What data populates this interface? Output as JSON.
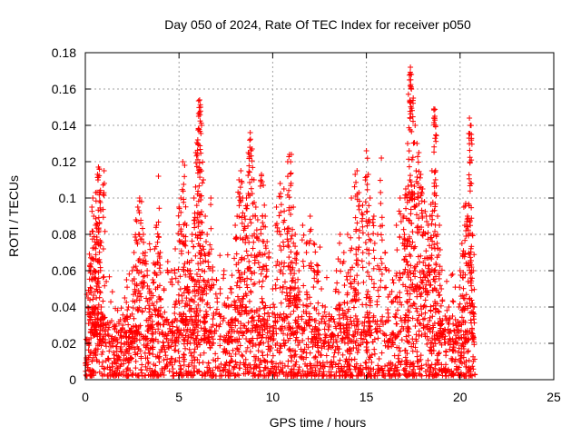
{
  "chart_data": {
    "type": "scatter",
    "title": "Day 050 of 2024, Rate Of TEC Index for receiver p050",
    "xlabel": "GPS time / hours",
    "ylabel": "ROTI / TECUs",
    "xlim": [
      0,
      25
    ],
    "ylim": [
      0,
      0.18
    ],
    "xticks": [
      0,
      5,
      10,
      15,
      20,
      25
    ],
    "yticks": [
      0,
      0.02,
      0.04,
      0.06,
      0.08,
      0.1,
      0.12,
      0.14,
      0.16,
      0.18
    ],
    "xtick_labels": [
      "0",
      "5",
      "10",
      "15",
      "20",
      "25"
    ],
    "ytick_labels": [
      "0",
      "0.02",
      "0.04",
      "0.06",
      "0.08",
      "0.1",
      "0.12",
      "0.14",
      "0.16",
      "0.18"
    ],
    "grid": true,
    "marker": "+",
    "color": "#ff0000",
    "series": [
      {
        "points": [
          [
            0.05,
            0.012
          ],
          [
            0.1,
            0.02
          ],
          [
            0.15,
            0.045
          ],
          [
            0.2,
            0.06
          ],
          [
            0.25,
            0.08
          ],
          [
            0.3,
            0.062
          ],
          [
            0.35,
            0.095
          ],
          [
            0.4,
            0.1
          ],
          [
            0.45,
            0.09
          ],
          [
            0.5,
            0.06
          ],
          [
            0.55,
            0.103
          ],
          [
            0.6,
            0.086
          ],
          [
            0.65,
            0.113
          ],
          [
            0.7,
            0.117
          ],
          [
            0.75,
            0.116
          ],
          [
            0.8,
            0.103
          ],
          [
            0.85,
            0.04
          ],
          [
            0.9,
            0.036
          ],
          [
            0.95,
            0.035
          ],
          [
            1.0,
            0.115
          ],
          [
            1.1,
            0.03
          ],
          [
            1.2,
            0.025
          ],
          [
            1.3,
            0.02
          ],
          [
            1.5,
            0.015
          ],
          [
            1.7,
            0.022
          ],
          [
            1.9,
            0.018
          ],
          [
            2.0,
            0.03
          ],
          [
            2.1,
            0.045
          ],
          [
            2.2,
            0.055
          ],
          [
            2.3,
            0.04
          ],
          [
            2.4,
            0.035
          ],
          [
            2.5,
            0.06
          ],
          [
            2.6,
            0.07
          ],
          [
            2.7,
            0.088
          ],
          [
            2.8,
            0.095
          ],
          [
            2.9,
            0.1
          ],
          [
            3.0,
            0.098
          ],
          [
            3.1,
            0.08
          ],
          [
            3.2,
            0.07
          ],
          [
            3.3,
            0.06
          ],
          [
            3.4,
            0.05
          ],
          [
            3.5,
            0.045
          ],
          [
            3.6,
            0.055
          ],
          [
            3.7,
            0.072
          ],
          [
            3.8,
            0.085
          ],
          [
            3.9,
            0.112
          ],
          [
            4.0,
            0.07
          ],
          [
            4.2,
            0.05
          ],
          [
            4.4,
            0.065
          ],
          [
            4.6,
            0.06
          ],
          [
            4.8,
            0.072
          ],
          [
            5.0,
            0.095
          ],
          [
            5.1,
            0.1
          ],
          [
            5.2,
            0.12
          ],
          [
            5.3,
            0.118
          ],
          [
            5.4,
            0.085
          ],
          [
            5.5,
            0.07
          ],
          [
            5.6,
            0.06
          ],
          [
            5.7,
            0.08
          ],
          [
            5.8,
            0.1
          ],
          [
            5.9,
            0.125
          ],
          [
            6.0,
            0.132
          ],
          [
            6.05,
            0.145
          ],
          [
            6.1,
            0.154
          ],
          [
            6.15,
            0.15
          ],
          [
            6.2,
            0.14
          ],
          [
            6.3,
            0.11
          ],
          [
            6.4,
            0.09
          ],
          [
            6.5,
            0.08
          ],
          [
            6.6,
            0.07
          ],
          [
            6.7,
            0.1
          ],
          [
            6.8,
            0.06
          ],
          [
            7.0,
            0.055
          ],
          [
            7.2,
            0.05
          ],
          [
            7.4,
            0.06
          ],
          [
            7.6,
            0.045
          ],
          [
            7.8,
            0.05
          ],
          [
            8.0,
            0.085
          ],
          [
            8.1,
            0.09
          ],
          [
            8.2,
            0.11
          ],
          [
            8.3,
            0.115
          ],
          [
            8.4,
            0.1
          ],
          [
            8.5,
            0.09
          ],
          [
            8.6,
            0.1
          ],
          [
            8.7,
            0.125
          ],
          [
            8.8,
            0.136
          ],
          [
            8.9,
            0.127
          ],
          [
            9.0,
            0.11
          ],
          [
            9.1,
            0.095
          ],
          [
            9.2,
            0.088
          ],
          [
            9.3,
            0.07
          ],
          [
            9.4,
            0.113
          ],
          [
            9.5,
            0.107
          ],
          [
            9.6,
            0.09
          ],
          [
            9.7,
            0.076
          ],
          [
            9.8,
            0.07
          ],
          [
            10.0,
            0.05
          ],
          [
            10.2,
            0.095
          ],
          [
            10.4,
            0.108
          ],
          [
            10.6,
            0.105
          ],
          [
            10.8,
            0.12
          ],
          [
            10.9,
            0.124
          ],
          [
            11.0,
            0.124
          ],
          [
            11.1,
            0.095
          ],
          [
            11.2,
            0.08
          ],
          [
            11.3,
            0.07
          ],
          [
            11.4,
            0.06
          ],
          [
            11.6,
            0.085
          ],
          [
            11.8,
            0.07
          ],
          [
            12.0,
            0.09
          ],
          [
            12.2,
            0.075
          ],
          [
            12.4,
            0.06
          ],
          [
            12.6,
            0.05
          ],
          [
            12.8,
            0.04
          ],
          [
            13.0,
            0.03
          ],
          [
            13.2,
            0.025
          ],
          [
            13.4,
            0.06
          ],
          [
            13.6,
            0.08
          ],
          [
            13.8,
            0.07
          ],
          [
            14.0,
            0.08
          ],
          [
            14.2,
            0.1
          ],
          [
            14.4,
            0.113
          ],
          [
            14.5,
            0.115
          ],
          [
            14.6,
            0.103
          ],
          [
            14.8,
            0.096
          ],
          [
            15.0,
            0.126
          ],
          [
            15.1,
            0.113
          ],
          [
            15.2,
            0.1
          ],
          [
            15.4,
            0.09
          ],
          [
            15.6,
            0.08
          ],
          [
            15.8,
            0.122
          ],
          [
            16.0,
            0.07
          ],
          [
            16.2,
            0.06
          ],
          [
            16.4,
            0.055
          ],
          [
            16.6,
            0.085
          ],
          [
            16.8,
            0.1
          ],
          [
            17.0,
            0.09
          ],
          [
            17.1,
            0.105
          ],
          [
            17.2,
            0.13
          ],
          [
            17.3,
            0.165
          ],
          [
            17.35,
            0.172
          ],
          [
            17.4,
            0.168
          ],
          [
            17.5,
            0.155
          ],
          [
            17.6,
            0.14
          ],
          [
            17.7,
            0.13
          ],
          [
            17.8,
            0.125
          ],
          [
            17.9,
            0.113
          ],
          [
            18.0,
            0.105
          ],
          [
            18.1,
            0.098
          ],
          [
            18.2,
            0.09
          ],
          [
            18.3,
            0.085
          ],
          [
            18.4,
            0.09
          ],
          [
            18.5,
            0.115
          ],
          [
            18.6,
            0.149
          ],
          [
            18.65,
            0.145
          ],
          [
            18.7,
            0.14
          ],
          [
            18.8,
            0.09
          ],
          [
            18.9,
            0.085
          ],
          [
            19.0,
            0.05
          ],
          [
            19.2,
            0.035
          ],
          [
            19.4,
            0.04
          ],
          [
            19.6,
            0.035
          ],
          [
            19.8,
            0.03
          ],
          [
            20.0,
            0.06
          ],
          [
            20.1,
            0.075
          ],
          [
            20.2,
            0.095
          ],
          [
            20.3,
            0.097
          ],
          [
            20.4,
            0.09
          ],
          [
            20.5,
            0.144
          ],
          [
            20.55,
            0.14
          ],
          [
            20.6,
            0.135
          ],
          [
            20.65,
            0.08
          ],
          [
            20.7,
            0.06
          ],
          [
            20.75,
            0.04
          ]
        ]
      }
    ],
    "noise_floor": {
      "x_range": [
        0,
        20.8
      ],
      "y_range": [
        0.002,
        0.035
      ],
      "density": 1400
    }
  }
}
